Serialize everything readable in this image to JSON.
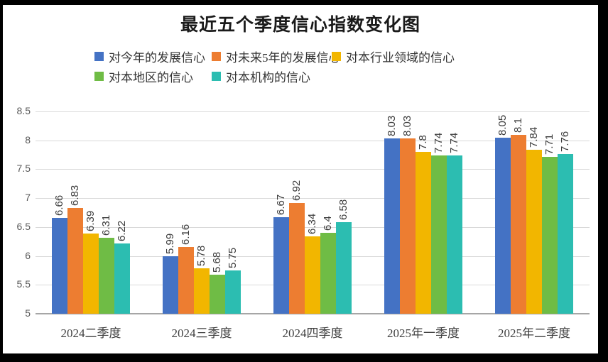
{
  "frame_color": "#000000",
  "background_color": "#ffffff",
  "chart_data": {
    "type": "bar",
    "title": "最近五个季度信心指数变化图",
    "categories": [
      "2024二季度",
      "2024三季度",
      "2024四季度",
      "2025年一季度",
      "2025年二季度"
    ],
    "series": [
      {
        "name": "对今年的发展信心",
        "color": "#4472C4",
        "values": [
          6.66,
          5.99,
          6.67,
          8.03,
          8.05
        ]
      },
      {
        "name": "对未来5年的发展信心",
        "color": "#ED7D31",
        "values": [
          6.83,
          6.16,
          6.92,
          8.03,
          8.1
        ]
      },
      {
        "name": "对本行业领域的信心",
        "color": "#F2B600",
        "values": [
          6.39,
          5.78,
          6.34,
          7.8,
          7.84
        ]
      },
      {
        "name": "对本地区的信心",
        "color": "#6FBC45",
        "values": [
          6.31,
          5.68,
          6.4,
          7.74,
          7.71
        ]
      },
      {
        "name": "对本机构的信心",
        "color": "#2CBDB1",
        "values": [
          6.22,
          5.75,
          6.58,
          7.74,
          7.76
        ]
      }
    ],
    "ylim": [
      5,
      8.5
    ],
    "ytick_step": 0.5,
    "ytick_labels": [
      "5",
      "5.5",
      "6",
      "6.5",
      "7",
      "7.5",
      "8",
      "8.5"
    ],
    "grid": true,
    "legend_position": "top-left",
    "data_labels_rotated": true,
    "gridline_color": "#d9d9d9",
    "axis_color": "#a6a6a6",
    "tick_color": "#595959",
    "data_label_color": "#3b3b3b"
  }
}
